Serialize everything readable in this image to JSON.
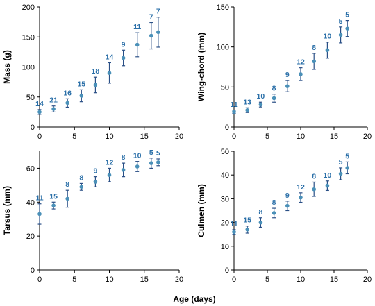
{
  "figure": {
    "shared_xlabel": "Age (days)"
  },
  "colors": {
    "marker": "#4a90b8",
    "errorbar": "#2a4f86",
    "nlabel": "#2a6fa8",
    "axis": "#000000"
  },
  "chart_data": [
    {
      "type": "scatter",
      "ylabel": "Mass (g)",
      "xlim": [
        0,
        20
      ],
      "ylim": [
        0,
        200
      ],
      "xticks": [
        0,
        5,
        10,
        15,
        20
      ],
      "yticks": [
        0,
        50,
        100,
        150,
        200
      ],
      "x": [
        0,
        2,
        4,
        6,
        8,
        10,
        12,
        14,
        16,
        17
      ],
      "y": [
        25,
        30,
        40,
        52,
        70,
        90,
        115,
        137,
        152,
        158
      ],
      "err": [
        4,
        5,
        7,
        10,
        13,
        17,
        13,
        20,
        22,
        25
      ],
      "n": [
        "14",
        "21",
        "16",
        "15",
        "18",
        "14",
        "9",
        "11",
        "7",
        "7"
      ]
    },
    {
      "type": "scatter",
      "ylabel": "Wing-chord (mm)",
      "xlim": [
        0,
        20
      ],
      "ylim": [
        0,
        150
      ],
      "xticks": [
        0,
        5,
        10,
        15,
        20
      ],
      "yticks": [
        0,
        50,
        100,
        150
      ],
      "x": [
        0,
        2,
        4,
        6,
        8,
        10,
        12,
        14,
        16,
        17
      ],
      "y": [
        19,
        21,
        28,
        36,
        51,
        66,
        82,
        96,
        115,
        123
      ],
      "err": [
        2,
        3,
        3,
        5,
        7,
        8,
        10,
        10,
        10,
        10
      ],
      "n": [
        "11",
        "13",
        "10",
        "8",
        "9",
        "12",
        "8",
        "10",
        "5",
        "5"
      ]
    },
    {
      "type": "scatter",
      "ylabel": "Tarsus (mm)",
      "xlim": [
        0,
        20
      ],
      "ylim": [
        0,
        70
      ],
      "xticks": [
        0,
        5,
        10,
        15,
        20
      ],
      "yticks": [
        0,
        20,
        40,
        60
      ],
      "x": [
        0,
        2,
        4,
        6,
        8,
        10,
        12,
        14,
        16,
        17
      ],
      "y": [
        33,
        38,
        42,
        49,
        52,
        56,
        59,
        61,
        63,
        63.5
      ],
      "err": [
        6,
        2,
        5,
        2,
        3,
        4,
        4,
        3,
        3,
        2
      ],
      "n": [
        "11",
        "15",
        "8",
        "8",
        "9",
        "12",
        "8",
        "10",
        "5",
        "5"
      ]
    },
    {
      "type": "scatter",
      "ylabel": "Culmen (mm)",
      "xlim": [
        0,
        20
      ],
      "ylim": [
        0,
        50
      ],
      "xticks": [
        0,
        5,
        10,
        15,
        20
      ],
      "yticks": [
        0,
        10,
        20,
        30,
        40,
        50
      ],
      "x": [
        0,
        2,
        4,
        6,
        8,
        10,
        12,
        14,
        16,
        17
      ],
      "y": [
        16,
        17,
        20,
        24,
        27,
        30.5,
        34,
        35.5,
        40.5,
        43
      ],
      "err": [
        1,
        1.5,
        2,
        2,
        2,
        2,
        3,
        2,
        2.5,
        2.5
      ],
      "n": [
        "11",
        "15",
        "8",
        "8",
        "9",
        "12",
        "8",
        "10",
        "5",
        "5"
      ]
    }
  ]
}
